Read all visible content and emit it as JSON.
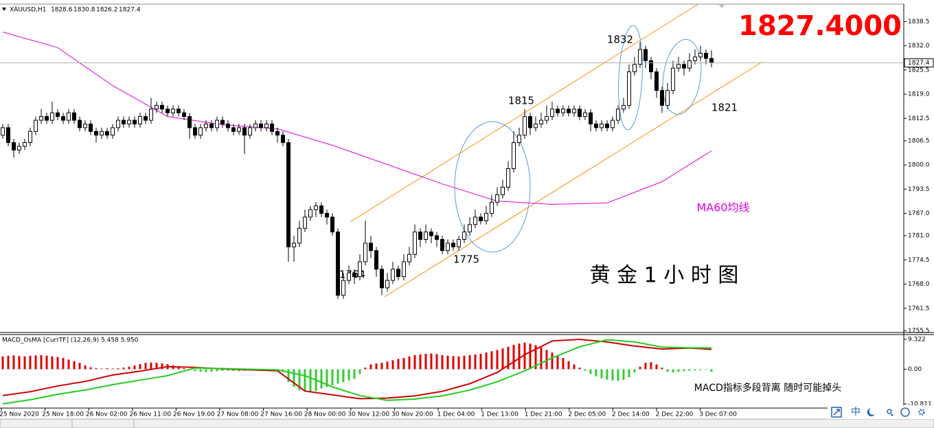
{
  "chart_data": [
    {
      "type": "candlestick",
      "symbol": "XAUUSD,H1",
      "price_banner": "1827.4000",
      "annotations": [
        "1832",
        "1815",
        "1821",
        "1775",
        "1764",
        "黄 金 1 小 时 图"
      ],
      "ylim": [
        1755.0,
        1843.0
      ],
      "yticks": [
        1838.5,
        {
          "value": 1832.0,
          "label": "1832.0"
        },
        1825.5,
        {
          "value": 1819.0,
          "label": "1819.0"
        },
        1812.5,
        1806.5,
        {
          "value": 1800.0,
          "label": "1800.0"
        },
        1793.5,
        {
          "value": 1787.0,
          "label": "1787.0"
        },
        {
          "value": 1781.0,
          "label": "1781.0"
        },
        1774.5,
        {
          "value": 1768.0,
          "label": "1768.0"
        },
        1761.5,
        1755.5
      ],
      "x_labels": [
        "25 Nov 2020",
        "25 Nov 18:00",
        "26 Nov 02:00",
        "26 Nov 11:00",
        "26 Nov 19:00",
        "27 Nov 08:00",
        "27 Nov 16:00",
        "28 Nov 00:00",
        "30 Nov 12:00",
        "30 Nov 20:00",
        "1 Dec 04:00",
        "1 Dec 13:00",
        "1 Dec 21:00",
        "2 Dec 05:00",
        "2 Dec 14:00",
        "2 Dec 22:00",
        "3 Dec 07:00"
      ],
      "up_color": "#ffffff",
      "down_color": "#000000",
      "ohlc": [
        [
          1808,
          1811,
          1807,
          1810
        ],
        [
          1810,
          1811,
          1805,
          1806
        ],
        [
          1806,
          1807,
          1802,
          1804
        ],
        [
          1804,
          1806,
          1803,
          1805
        ],
        [
          1805,
          1807,
          1804,
          1806
        ],
        [
          1806,
          1810,
          1805,
          1809
        ],
        [
          1809,
          1813,
          1808,
          1812
        ],
        [
          1812,
          1815,
          1811,
          1813
        ],
        [
          1813,
          1814,
          1811,
          1812
        ],
        [
          1812,
          1817,
          1811,
          1814
        ],
        [
          1814,
          1815,
          1812,
          1813
        ],
        [
          1813,
          1814,
          1811,
          1812
        ],
        [
          1812,
          1815,
          1811,
          1814
        ],
        [
          1814,
          1815,
          1811,
          1812
        ],
        [
          1812,
          1813,
          1809,
          1810
        ],
        [
          1810,
          1812,
          1809,
          1811
        ],
        [
          1811,
          1812,
          1808,
          1809
        ],
        [
          1809,
          1810,
          1806,
          1808
        ],
        [
          1808,
          1810,
          1807,
          1809
        ],
        [
          1809,
          1810,
          1807,
          1808
        ],
        [
          1808,
          1811,
          1807,
          1810
        ],
        [
          1810,
          1813,
          1809,
          1812
        ],
        [
          1812,
          1813,
          1810,
          1811
        ],
        [
          1811,
          1813,
          1810,
          1812
        ],
        [
          1812,
          1813,
          1810,
          1811
        ],
        [
          1811,
          1814,
          1810,
          1813
        ],
        [
          1813,
          1814,
          1811,
          1812
        ],
        [
          1812,
          1818,
          1811,
          1815
        ],
        [
          1815,
          1817,
          1814,
          1816
        ],
        [
          1816,
          1817,
          1814,
          1815
        ],
        [
          1815,
          1816,
          1813,
          1814
        ],
        [
          1814,
          1816,
          1813,
          1815
        ],
        [
          1815,
          1816,
          1813,
          1814
        ],
        [
          1814,
          1815,
          1812,
          1813
        ],
        [
          1813,
          1814,
          1807,
          1810
        ],
        [
          1810,
          1811,
          1807,
          1808
        ],
        [
          1808,
          1811,
          1807,
          1810
        ],
        [
          1810,
          1812,
          1809,
          1811
        ],
        [
          1811,
          1812,
          1809,
          1810
        ],
        [
          1810,
          1813,
          1809,
          1812
        ],
        [
          1812,
          1813,
          1810,
          1811
        ],
        [
          1811,
          1812,
          1809,
          1810
        ],
        [
          1810,
          1811,
          1808,
          1809
        ],
        [
          1809,
          1811,
          1808,
          1810
        ],
        [
          1810,
          1811,
          1803,
          1808
        ],
        [
          1808,
          1811,
          1807,
          1810
        ],
        [
          1810,
          1812,
          1809,
          1811
        ],
        [
          1811,
          1812,
          1809,
          1810
        ],
        [
          1810,
          1812,
          1809,
          1811
        ],
        [
          1811,
          1812,
          1808,
          1809
        ],
        [
          1809,
          1810,
          1806,
          1808
        ],
        [
          1808,
          1809,
          1805,
          1806
        ],
        [
          1806,
          1807,
          1774,
          1778
        ],
        [
          1778,
          1781,
          1774,
          1779
        ],
        [
          1779,
          1785,
          1778,
          1783
        ],
        [
          1783,
          1788,
          1782,
          1786
        ],
        [
          1786,
          1789,
          1785,
          1788
        ],
        [
          1788,
          1790,
          1786,
          1789
        ],
        [
          1789,
          1790,
          1786,
          1787
        ],
        [
          1787,
          1788,
          1784,
          1786
        ],
        [
          1786,
          1787,
          1781,
          1782
        ],
        [
          1782,
          1783,
          1764,
          1765
        ],
        [
          1765,
          1771,
          1764,
          1769
        ],
        [
          1769,
          1773,
          1768,
          1771
        ],
        [
          1771,
          1772,
          1768,
          1770
        ],
        [
          1770,
          1776,
          1769,
          1774
        ],
        [
          1774,
          1785,
          1773,
          1779
        ],
        [
          1779,
          1781,
          1775,
          1777
        ],
        [
          1777,
          1778,
          1770,
          1772
        ],
        [
          1772,
          1773,
          1765,
          1767
        ],
        [
          1767,
          1771,
          1766,
          1769
        ],
        [
          1769,
          1774,
          1768,
          1772
        ],
        [
          1772,
          1773,
          1769,
          1770
        ],
        [
          1770,
          1776,
          1769,
          1774
        ],
        [
          1774,
          1778,
          1773,
          1776
        ],
        [
          1776,
          1784,
          1775,
          1782
        ],
        [
          1782,
          1783,
          1778,
          1780
        ],
        [
          1780,
          1784,
          1779,
          1782
        ],
        [
          1782,
          1783,
          1779,
          1781
        ],
        [
          1781,
          1782,
          1778,
          1780
        ],
        [
          1780,
          1781,
          1776,
          1777
        ],
        [
          1777,
          1780,
          1776,
          1779
        ],
        [
          1779,
          1780,
          1777,
          1778
        ],
        [
          1778,
          1781,
          1777,
          1780
        ],
        [
          1780,
          1784,
          1779,
          1782
        ],
        [
          1782,
          1786,
          1781,
          1784
        ],
        [
          1784,
          1788,
          1783,
          1786
        ],
        [
          1786,
          1787,
          1784,
          1785
        ],
        [
          1785,
          1789,
          1784,
          1787
        ],
        [
          1787,
          1792,
          1786,
          1790
        ],
        [
          1790,
          1794,
          1789,
          1792
        ],
        [
          1792,
          1796,
          1791,
          1794
        ],
        [
          1794,
          1801,
          1793,
          1799
        ],
        [
          1799,
          1809,
          1798,
          1806
        ],
        [
          1806,
          1810,
          1805,
          1808
        ],
        [
          1808,
          1815,
          1807,
          1813
        ],
        [
          1813,
          1814,
          1808,
          1810
        ],
        [
          1810,
          1813,
          1809,
          1811
        ],
        [
          1811,
          1814,
          1810,
          1812
        ],
        [
          1812,
          1816,
          1811,
          1813
        ],
        [
          1813,
          1817,
          1812,
          1815
        ],
        [
          1815,
          1816,
          1813,
          1814
        ],
        [
          1814,
          1816,
          1813,
          1815
        ],
        [
          1815,
          1816,
          1813,
          1814
        ],
        [
          1814,
          1816,
          1813,
          1815
        ],
        [
          1815,
          1816,
          1812,
          1813
        ],
        [
          1813,
          1815,
          1812,
          1814
        ],
        [
          1814,
          1815,
          1809,
          1811
        ],
        [
          1811,
          1812,
          1809,
          1810
        ],
        [
          1810,
          1812,
          1809,
          1811
        ],
        [
          1811,
          1812,
          1809,
          1810
        ],
        [
          1810,
          1813,
          1809,
          1812
        ],
        [
          1812,
          1816,
          1811,
          1815
        ],
        [
          1815,
          1818,
          1814,
          1816
        ],
        [
          1816,
          1827,
          1815,
          1825
        ],
        [
          1825,
          1829,
          1824,
          1827
        ],
        [
          1827,
          1833,
          1826,
          1831
        ],
        [
          1831,
          1832,
          1826,
          1828
        ],
        [
          1828,
          1829,
          1823,
          1825
        ],
        [
          1825,
          1826,
          1818,
          1820
        ],
        [
          1820,
          1821,
          1814,
          1816
        ],
        [
          1816,
          1822,
          1815,
          1820
        ],
        [
          1820,
          1828,
          1819,
          1826
        ],
        [
          1826,
          1829,
          1825,
          1827
        ],
        [
          1827,
          1828,
          1824,
          1826
        ],
        [
          1826,
          1830,
          1825,
          1828
        ],
        [
          1828,
          1831,
          1827,
          1829
        ],
        [
          1829,
          1832,
          1828,
          1830
        ],
        [
          1830,
          1831,
          1827,
          1828.6
        ],
        [
          1828.6,
          1830.8,
          1826.2,
          1827.4
        ]
      ],
      "series": [
        {
          "name": "MA60均线",
          "color": "#e000e0",
          "x": [
            0,
            10,
            20,
            30,
            40,
            50,
            60,
            70,
            80,
            90,
            100,
            110,
            120,
            129
          ],
          "values": [
            1835.7,
            1831.5,
            1821.3,
            1813.0,
            1810.8,
            1809.7,
            1805.3,
            1800.1,
            1794.9,
            1790.3,
            1789.4,
            1789.8,
            1795.5,
            1803.8
          ]
        }
      ]
    },
    {
      "type": "macd",
      "title": "MACD_OsMA [CurrTF] (12,26,9) 5.458 5.950",
      "note": "MACD指标多段背离 随时可能掉头",
      "ylim": [
        -12.1,
        10.8
      ],
      "yticks": [
        9.322,
        {
          "value": 0,
          "label": "0.00"
        },
        -10.811
      ],
      "up_color": "#e00000",
      "down_color": "#33cc33",
      "histogram": [
        4,
        4.2,
        4.3,
        4.1,
        4,
        4.2,
        4.3,
        4.4,
        4.2,
        4,
        3.8,
        3.5,
        3,
        2.5,
        2,
        1.2,
        0.6,
        0.3,
        0.2,
        0.3,
        0.2,
        0.3,
        0.5,
        0.8,
        1.2,
        1.6,
        2,
        2.1,
        2,
        1.8,
        1.6,
        1.2,
        0.8,
        0.3,
        -0.3,
        -0.6,
        -0.8,
        -0.9,
        -0.8,
        -0.6,
        -0.5,
        -0.4,
        -0.5,
        -0.6,
        -0.5,
        -0.4,
        -0.3,
        -0.2,
        -0.3,
        -0.4,
        -0.5,
        -0.8,
        -4,
        -5.5,
        -6.5,
        -7,
        -7.2,
        -6.8,
        -6,
        -5.5,
        -5,
        -4.5,
        -4,
        -3.5,
        -3,
        -1.5,
        0.5,
        1.5,
        1.8,
        2,
        2.4,
        2.8,
        3.2,
        3.5,
        4,
        4.4,
        4.6,
        4.8,
        4.9,
        4.7,
        4.4,
        4.2,
        4.1,
        4,
        4.2,
        4.4,
        4.6,
        4.8,
        5.2,
        5.6,
        6,
        6.5,
        7,
        7.6,
        8,
        8.3,
        8,
        7.5,
        6.8,
        6,
        5.2,
        4.3,
        3.5,
        2.5,
        1.5,
        0.5,
        -0.5,
        -1.5,
        -2.2,
        -2.8,
        -3.2,
        -3.5,
        -3.6,
        -3.3,
        -2.5,
        -1,
        0.8,
        2,
        2.2,
        1.5,
        0.5,
        -0.8,
        -1,
        -0.8,
        -0.6,
        -0.5,
        -0.4,
        -0.3,
        -0.2,
        -0.8
      ],
      "series": [
        {
          "color": "#d00000",
          "x": [
            0,
            5,
            10,
            15,
            20,
            25,
            30,
            35,
            40,
            45,
            50,
            55,
            60,
            65,
            70,
            75,
            80,
            85,
            90,
            95,
            100,
            105,
            110,
            115,
            120,
            125,
            129
          ],
          "values": [
            -8.2,
            -7.0,
            -5.2,
            -3.8,
            -1.8,
            -0.6,
            0.8,
            0.6,
            0.1,
            -0.2,
            -0.5,
            -6.8,
            -8.0,
            -9.2,
            -9.0,
            -8.3,
            -6.9,
            -4.5,
            -1.0,
            4.5,
            8.8,
            9.3,
            8.5,
            7.2,
            6.3,
            6.6,
            6.2
          ]
        },
        {
          "color": "#22cc22",
          "x": [
            0,
            5,
            10,
            15,
            20,
            25,
            30,
            35,
            40,
            45,
            50,
            55,
            60,
            65,
            70,
            75,
            80,
            85,
            90,
            95,
            100,
            105,
            110,
            115,
            120,
            125,
            129
          ],
          "values": [
            -10.8,
            -9.5,
            -7.8,
            -6.5,
            -4.8,
            -3.4,
            -2.0,
            0.4,
            0.2,
            0.0,
            -0.2,
            -2.0,
            -5.5,
            -8.2,
            -9.7,
            -9.3,
            -8.3,
            -6.5,
            -3.9,
            -0.5,
            3.5,
            7.0,
            9.2,
            8.5,
            6.9,
            6.7,
            6.6
          ]
        }
      ]
    }
  ],
  "status_bar": {
    "input_method": "中"
  }
}
